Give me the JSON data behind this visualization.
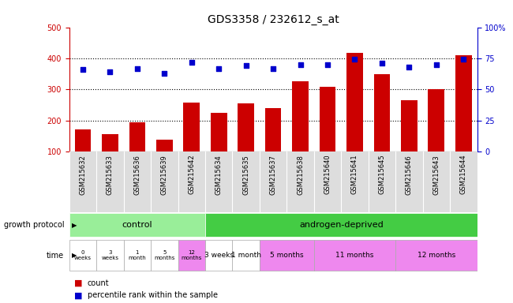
{
  "title": "GDS3358 / 232612_s_at",
  "samples": [
    "GSM215632",
    "GSM215633",
    "GSM215636",
    "GSM215639",
    "GSM215642",
    "GSM215634",
    "GSM215635",
    "GSM215637",
    "GSM215638",
    "GSM215640",
    "GSM215641",
    "GSM215645",
    "GSM215646",
    "GSM215643",
    "GSM215644"
  ],
  "counts": [
    170,
    157,
    195,
    138,
    258,
    225,
    255,
    240,
    325,
    308,
    418,
    350,
    265,
    300,
    410
  ],
  "percentiles": [
    66,
    64,
    67,
    63,
    72,
    67,
    69,
    67,
    70,
    70,
    74,
    71,
    68,
    70,
    74
  ],
  "ylim_left": [
    100,
    500
  ],
  "ylim_right": [
    0,
    100
  ],
  "yticks_left": [
    100,
    200,
    300,
    400,
    500
  ],
  "yticks_right": [
    0,
    25,
    50,
    75,
    100
  ],
  "bar_color": "#cc0000",
  "dot_color": "#0000cc",
  "grid_color": "#000000",
  "control_color": "#99ee99",
  "androgen_color": "#44cc44",
  "control_label": "control",
  "androgen_label": "androgen-deprived",
  "growth_protocol_label": "growth protocol",
  "time_label": "time",
  "control_time_labels": [
    "0\nweeks",
    "3\nweeks",
    "1\nmonth",
    "5\nmonths",
    "12\nmonths"
  ],
  "androgen_time_labels": [
    "3 weeks",
    "1 month",
    "5 months",
    "11 months",
    "12 months"
  ],
  "androgen_time_colors": [
    "#ffffff",
    "#ffffff",
    "#ee88ee",
    "#ee88ee",
    "#ee88ee"
  ],
  "ctrl_time_colors": [
    "#ffffff",
    "#ffffff",
    "#ffffff",
    "#ffffff",
    "#ee88ee"
  ],
  "androgen_widths": [
    1,
    1,
    2,
    3,
    3
  ],
  "legend_count": "count",
  "legend_percentile": "percentile rank within the sample",
  "background_color": "#ffffff",
  "label_bg_color": "#dddddd"
}
